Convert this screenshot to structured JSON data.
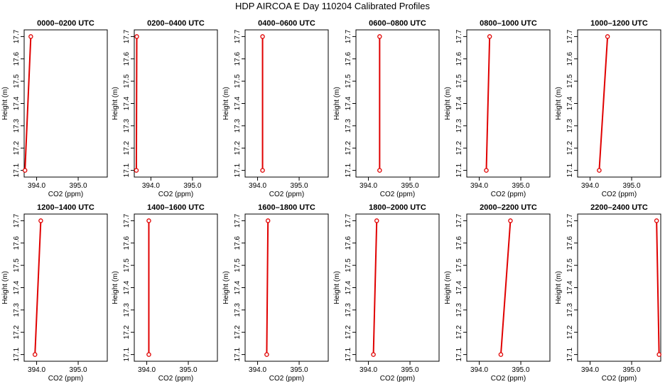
{
  "figure": {
    "title": "HDP AIRCOA E  Day 110204  Calibrated Profiles"
  },
  "chart_data": [
    {
      "type": "line",
      "title": "0000–0200 UTC",
      "xlabel": "CO2 (ppm)",
      "ylabel": "Height (m)",
      "xlim": [
        393.7,
        395.7
      ],
      "ylim": [
        17.07,
        17.73
      ],
      "xticks": [
        394.0,
        395.0
      ],
      "yticks": [
        17.1,
        17.2,
        17.3,
        17.4,
        17.5,
        17.6,
        17.7
      ],
      "points": [
        {
          "x": 393.72,
          "y": 17.1
        },
        {
          "x": 393.86,
          "y": 17.7
        }
      ]
    },
    {
      "type": "line",
      "title": "0200–0400 UTC",
      "xlabel": "CO2 (ppm)",
      "ylabel": "Height (m)",
      "xlim": [
        393.6,
        395.6
      ],
      "ylim": [
        17.07,
        17.73
      ],
      "xticks": [
        394.0,
        395.0
      ],
      "yticks": [
        17.1,
        17.2,
        17.3,
        17.4,
        17.5,
        17.6,
        17.7
      ],
      "points": [
        {
          "x": 393.65,
          "y": 17.1
        },
        {
          "x": 393.66,
          "y": 17.7
        }
      ]
    },
    {
      "type": "line",
      "title": "0400–0600 UTC",
      "xlabel": "CO2 (ppm)",
      "ylabel": "Height (m)",
      "xlim": [
        393.7,
        395.7
      ],
      "ylim": [
        17.07,
        17.73
      ],
      "xticks": [
        394.0,
        395.0
      ],
      "yticks": [
        17.1,
        17.2,
        17.3,
        17.4,
        17.5,
        17.6,
        17.7
      ],
      "points": [
        {
          "x": 394.12,
          "y": 17.1
        },
        {
          "x": 394.12,
          "y": 17.7
        }
      ]
    },
    {
      "type": "line",
      "title": "0600–0800 UTC",
      "xlabel": "CO2 (ppm)",
      "ylabel": "Height (m)",
      "xlim": [
        393.7,
        395.7
      ],
      "ylim": [
        17.07,
        17.73
      ],
      "xticks": [
        394.0,
        395.0
      ],
      "yticks": [
        17.1,
        17.2,
        17.3,
        17.4,
        17.5,
        17.6,
        17.7
      ],
      "points": [
        {
          "x": 394.27,
          "y": 17.1
        },
        {
          "x": 394.27,
          "y": 17.7
        }
      ]
    },
    {
      "type": "line",
      "title": "0800–1000 UTC",
      "xlabel": "CO2 (ppm)",
      "ylabel": "Height (m)",
      "xlim": [
        393.7,
        395.7
      ],
      "ylim": [
        17.07,
        17.73
      ],
      "xticks": [
        394.0,
        395.0
      ],
      "yticks": [
        17.1,
        17.2,
        17.3,
        17.4,
        17.5,
        17.6,
        17.7
      ],
      "points": [
        {
          "x": 394.17,
          "y": 17.1
        },
        {
          "x": 394.25,
          "y": 17.7
        }
      ]
    },
    {
      "type": "line",
      "title": "1000–1200 UTC",
      "xlabel": "CO2 (ppm)",
      "ylabel": "Height (m)",
      "xlim": [
        393.7,
        395.7
      ],
      "ylim": [
        17.07,
        17.73
      ],
      "xticks": [
        394.0,
        395.0
      ],
      "yticks": [
        17.1,
        17.2,
        17.3,
        17.4,
        17.5,
        17.6,
        17.7
      ],
      "points": [
        {
          "x": 394.22,
          "y": 17.1
        },
        {
          "x": 394.42,
          "y": 17.7
        }
      ]
    },
    {
      "type": "line",
      "title": "1200–1400 UTC",
      "xlabel": "CO2 (ppm)",
      "ylabel": "Height (m)",
      "xlim": [
        393.7,
        395.7
      ],
      "ylim": [
        17.07,
        17.73
      ],
      "xticks": [
        394.0,
        395.0
      ],
      "yticks": [
        17.1,
        17.2,
        17.3,
        17.4,
        17.5,
        17.6,
        17.7
      ],
      "points": [
        {
          "x": 393.96,
          "y": 17.1
        },
        {
          "x": 394.1,
          "y": 17.7
        }
      ]
    },
    {
      "type": "line",
      "title": "1400–1600 UTC",
      "xlabel": "CO2 (ppm)",
      "ylabel": "Height (m)",
      "xlim": [
        393.7,
        395.7
      ],
      "ylim": [
        17.07,
        17.73
      ],
      "xticks": [
        394.0,
        395.0
      ],
      "yticks": [
        17.1,
        17.2,
        17.3,
        17.4,
        17.5,
        17.6,
        17.7
      ],
      "points": [
        {
          "x": 394.05,
          "y": 17.1
        },
        {
          "x": 394.05,
          "y": 17.7
        }
      ]
    },
    {
      "type": "line",
      "title": "1600–1800 UTC",
      "xlabel": "CO2 (ppm)",
      "ylabel": "Height (m)",
      "xlim": [
        393.7,
        395.7
      ],
      "ylim": [
        17.07,
        17.73
      ],
      "xticks": [
        394.0,
        395.0
      ],
      "yticks": [
        17.1,
        17.2,
        17.3,
        17.4,
        17.5,
        17.6,
        17.7
      ],
      "points": [
        {
          "x": 394.22,
          "y": 17.1
        },
        {
          "x": 394.25,
          "y": 17.7
        }
      ]
    },
    {
      "type": "line",
      "title": "1800–2000 UTC",
      "xlabel": "CO2 (ppm)",
      "ylabel": "Height (m)",
      "xlim": [
        393.7,
        395.7
      ],
      "ylim": [
        17.07,
        17.73
      ],
      "xticks": [
        394.0,
        395.0
      ],
      "yticks": [
        17.1,
        17.2,
        17.3,
        17.4,
        17.5,
        17.6,
        17.7
      ],
      "points": [
        {
          "x": 394.12,
          "y": 17.1
        },
        {
          "x": 394.2,
          "y": 17.7
        }
      ]
    },
    {
      "type": "line",
      "title": "2000–2200 UTC",
      "xlabel": "CO2 (ppm)",
      "ylabel": "Height (m)",
      "xlim": [
        393.7,
        395.7
      ],
      "ylim": [
        17.07,
        17.73
      ],
      "xticks": [
        394.0,
        395.0
      ],
      "yticks": [
        17.1,
        17.2,
        17.3,
        17.4,
        17.5,
        17.6,
        17.7
      ],
      "points": [
        {
          "x": 394.52,
          "y": 17.1
        },
        {
          "x": 394.75,
          "y": 17.7
        }
      ]
    },
    {
      "type": "line",
      "title": "2200–2400 UTC",
      "xlabel": "CO2 (ppm)",
      "ylabel": "Height (m)",
      "xlim": [
        393.7,
        395.7
      ],
      "ylim": [
        17.07,
        17.73
      ],
      "xticks": [
        394.0,
        395.0
      ],
      "yticks": [
        17.1,
        17.2,
        17.3,
        17.4,
        17.5,
        17.6,
        17.7
      ],
      "points": [
        {
          "x": 395.66,
          "y": 17.1
        },
        {
          "x": 395.6,
          "y": 17.7
        }
      ]
    }
  ],
  "colors": {
    "series": "#e00000",
    "axis": "#000000"
  }
}
